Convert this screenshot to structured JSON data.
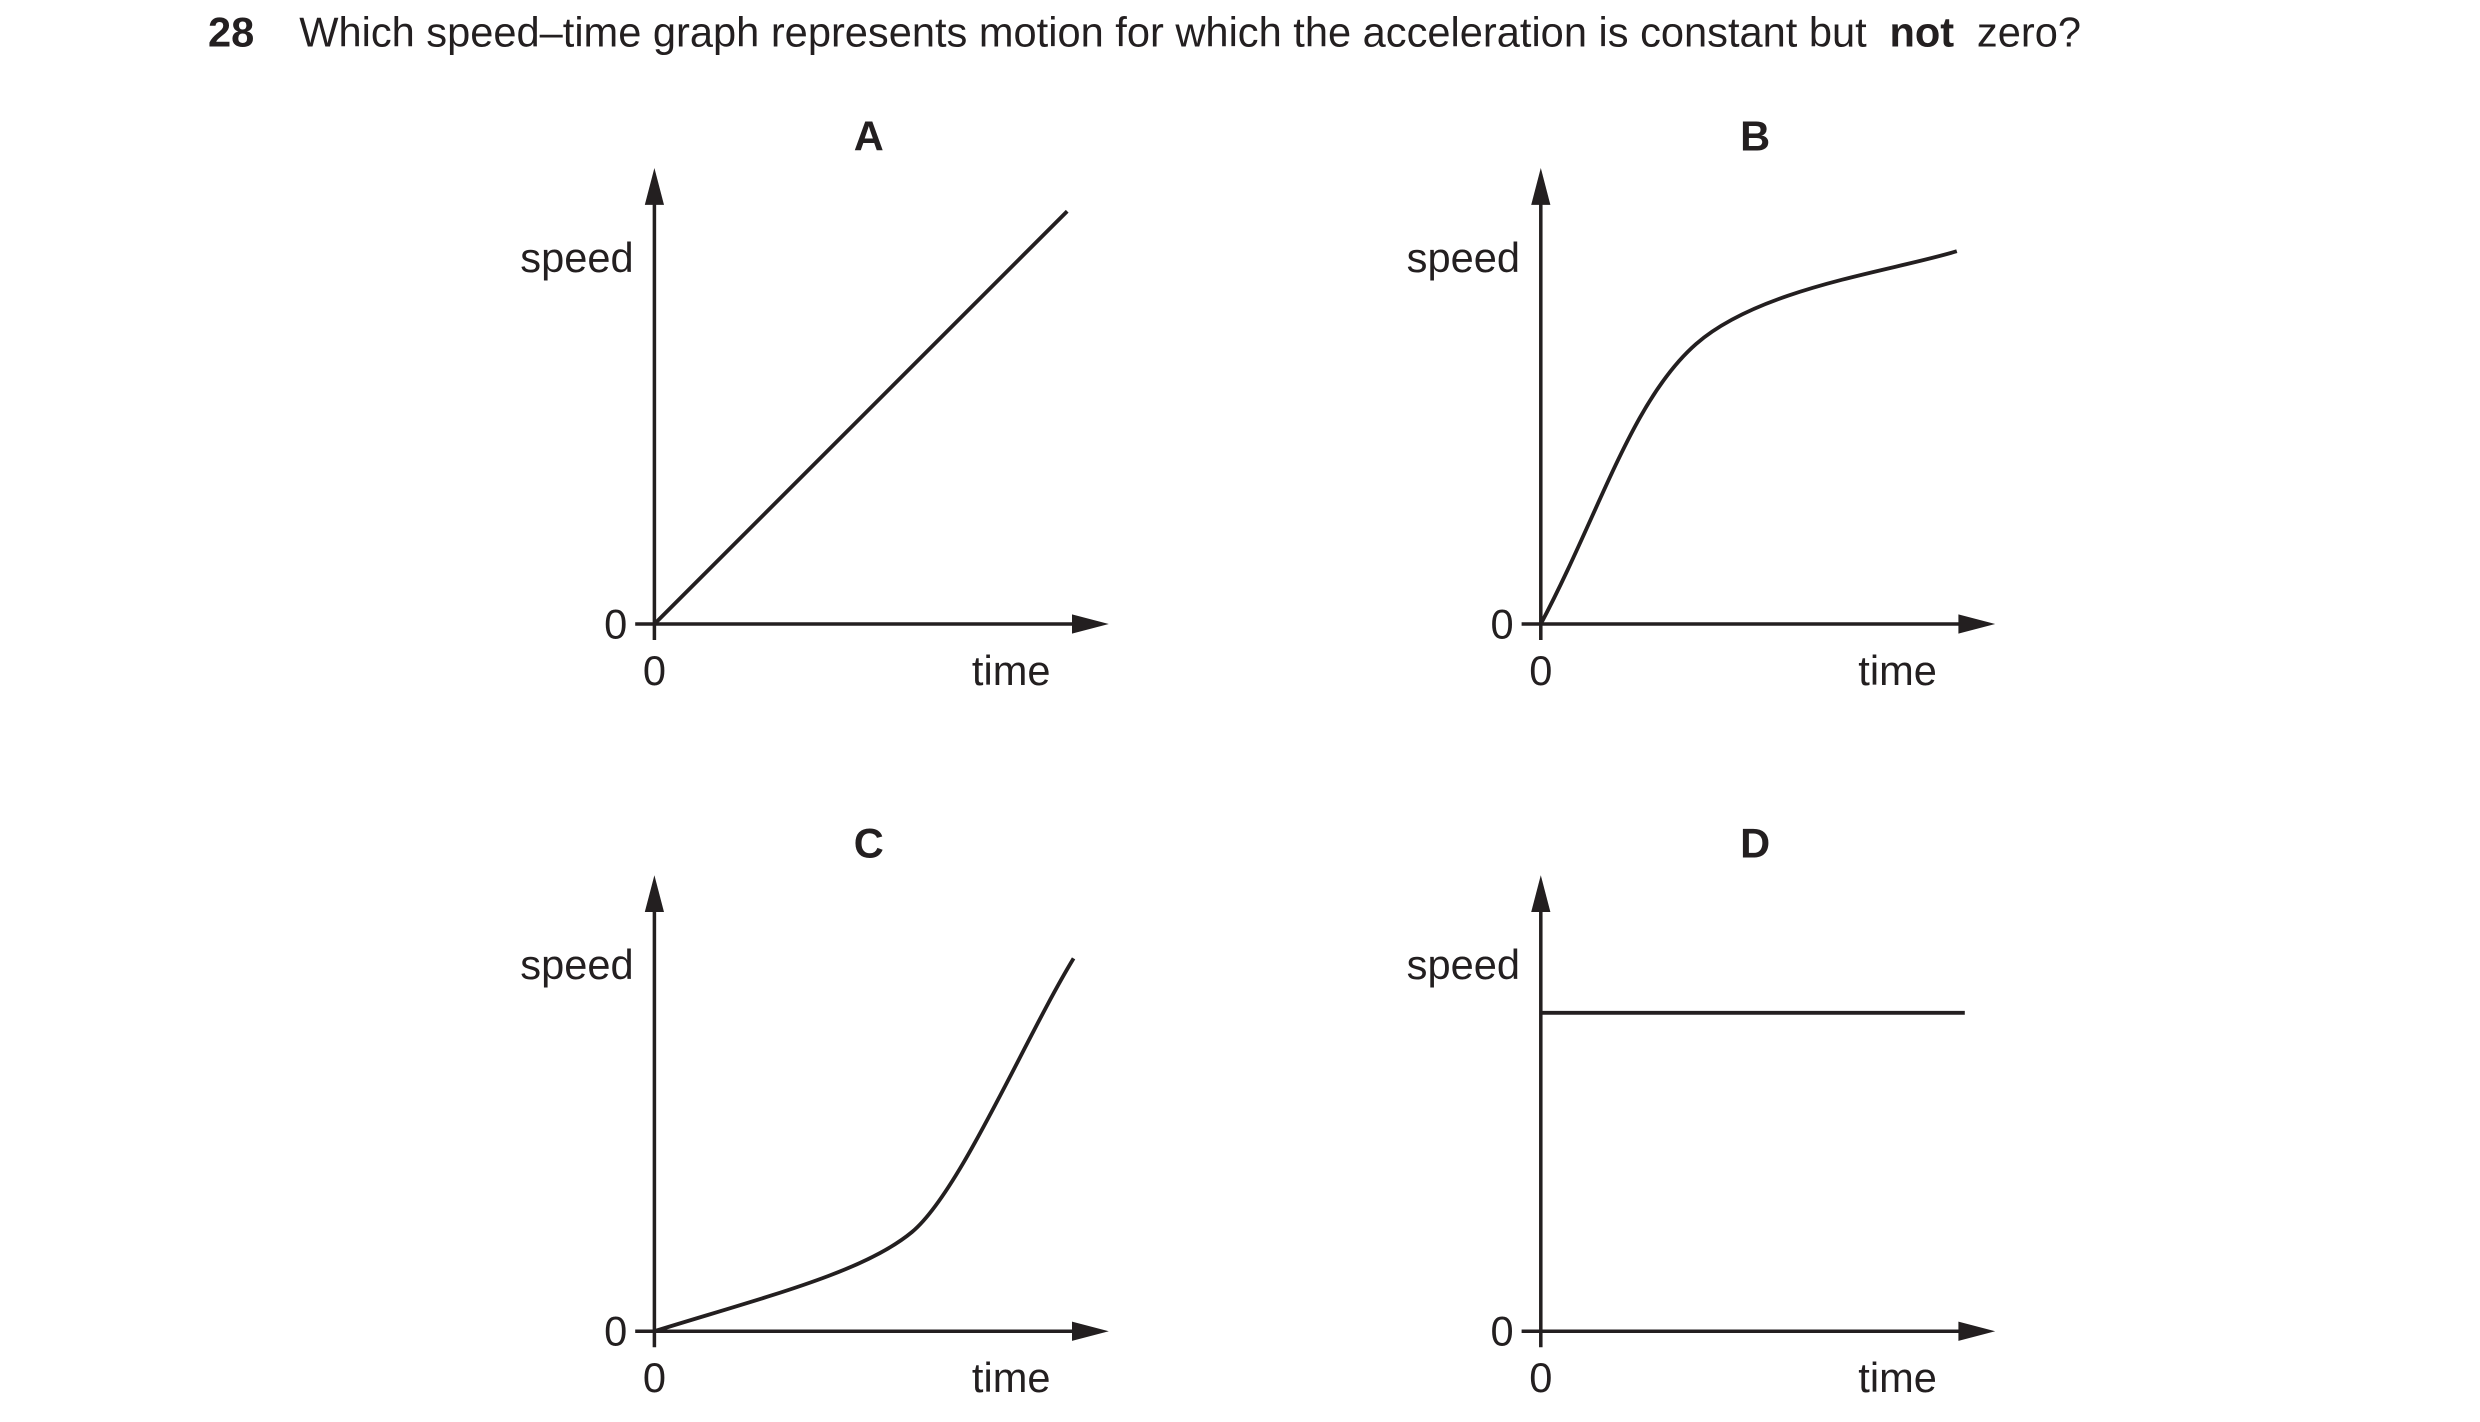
{
  "question": {
    "number": "28",
    "text_before": "Which speed–time graph represents motion for which the acceleration is constant but",
    "emphasis": "not",
    "text_after": "zero?"
  },
  "options": [
    {
      "label": "A",
      "y_label": "speed",
      "x_label": "time",
      "y_origin": "0",
      "x_origin": "0"
    },
    {
      "label": "B",
      "y_label": "speed",
      "x_label": "time",
      "y_origin": "0",
      "x_origin": "0"
    },
    {
      "label": "C",
      "y_label": "speed",
      "x_label": "time",
      "y_origin": "0",
      "x_origin": "0"
    },
    {
      "label": "D",
      "y_label": "speed",
      "x_label": "time",
      "y_origin": "0",
      "x_origin": "0"
    }
  ]
}
